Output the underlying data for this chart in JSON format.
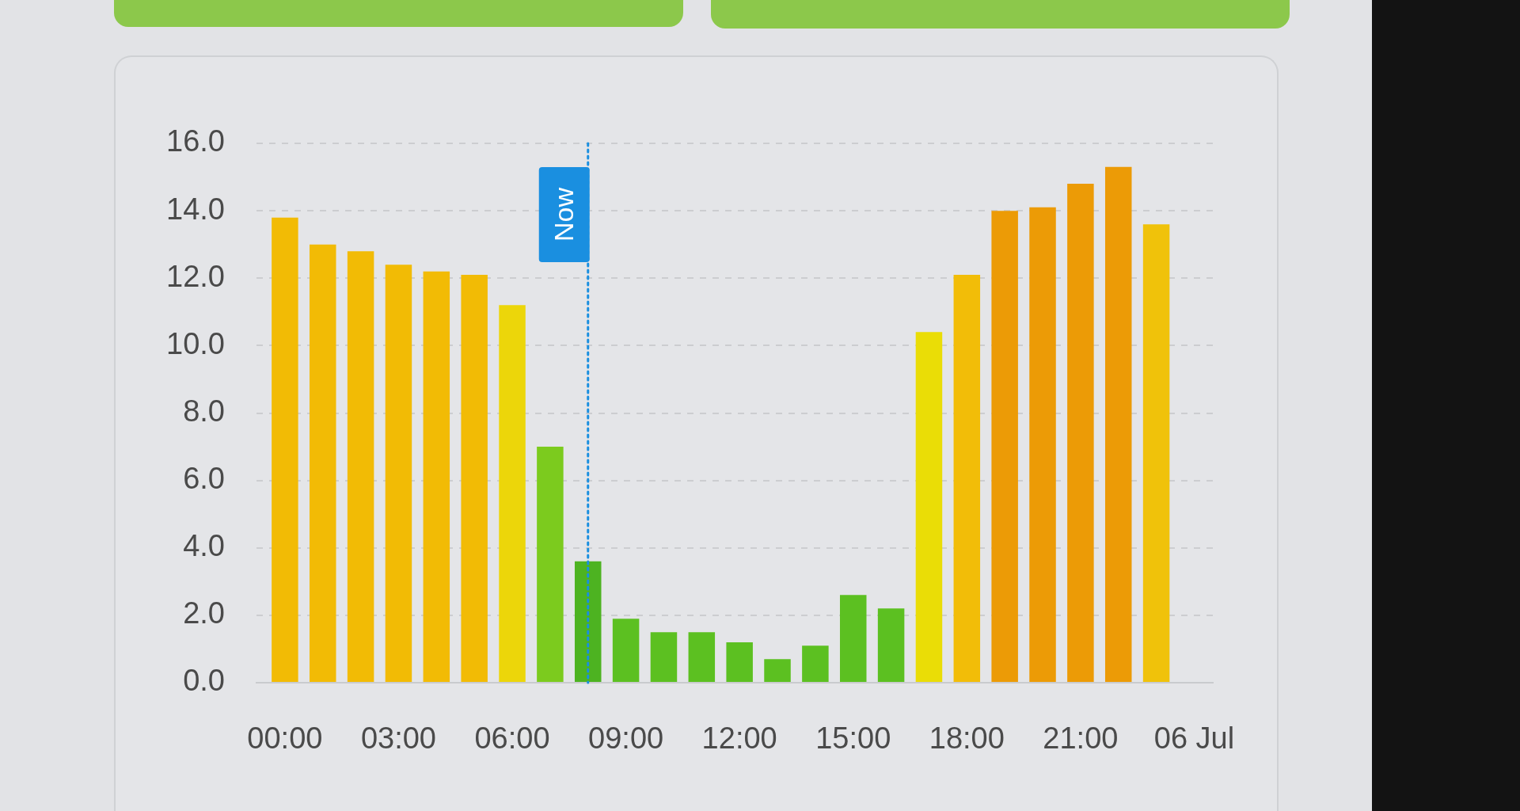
{
  "chart_data": {
    "type": "bar",
    "x": [
      0,
      1,
      2,
      3,
      4,
      5,
      6,
      7,
      8,
      9,
      10,
      11,
      12,
      13,
      14,
      15,
      16,
      17,
      18,
      19,
      20,
      21,
      22,
      23
    ],
    "values": [
      13.8,
      13.0,
      12.8,
      12.4,
      12.2,
      12.1,
      11.2,
      7.0,
      3.6,
      1.9,
      1.5,
      1.5,
      1.2,
      0.7,
      1.1,
      2.6,
      2.2,
      10.4,
      12.1,
      14.0,
      14.1,
      14.8,
      15.3,
      13.6
    ],
    "colors": [
      "#f2bb05",
      "#f2bb05",
      "#f2bb05",
      "#f2bb05",
      "#f2bb05",
      "#f2bb05",
      "#ecd60a",
      "#7ccb1e",
      "#4db321",
      "#5cc021",
      "#5cc021",
      "#5cc021",
      "#5cc021",
      "#5cc021",
      "#5cc021",
      "#5cc021",
      "#5cc021",
      "#eadd06",
      "#f2bd08",
      "#ec9b06",
      "#ec9b06",
      "#ec9b06",
      "#ec9b06",
      "#f0c20a"
    ],
    "xlim": [
      -0.75,
      24.5
    ],
    "xticks": [
      {
        "value": 0,
        "label": "00:00"
      },
      {
        "value": 3,
        "label": "03:00"
      },
      {
        "value": 6,
        "label": "06:00"
      },
      {
        "value": 9,
        "label": "09:00"
      },
      {
        "value": 12,
        "label": "12:00"
      },
      {
        "value": 15,
        "label": "15:00"
      },
      {
        "value": 18,
        "label": "18:00"
      },
      {
        "value": 21,
        "label": "21:00"
      },
      {
        "value": 24,
        "label": "06 Jul"
      }
    ],
    "ylim": [
      0,
      16
    ],
    "yticks": [
      {
        "value": 0,
        "label": "0.0"
      },
      {
        "value": 2,
        "label": "2.0"
      },
      {
        "value": 4,
        "label": "4.0"
      },
      {
        "value": 6,
        "label": "6.0"
      },
      {
        "value": 8,
        "label": "8.0"
      },
      {
        "value": 10,
        "label": "10.0"
      },
      {
        "value": 12,
        "label": "12.0"
      },
      {
        "value": 14,
        "label": "14.0"
      },
      {
        "value": 16,
        "label": "16.0"
      }
    ],
    "grid": "y",
    "ref_lines": [
      {
        "axis": "x",
        "value": 8,
        "label": "Now",
        "color": "#1a8fe0",
        "line_style": "dotted"
      }
    ]
  }
}
